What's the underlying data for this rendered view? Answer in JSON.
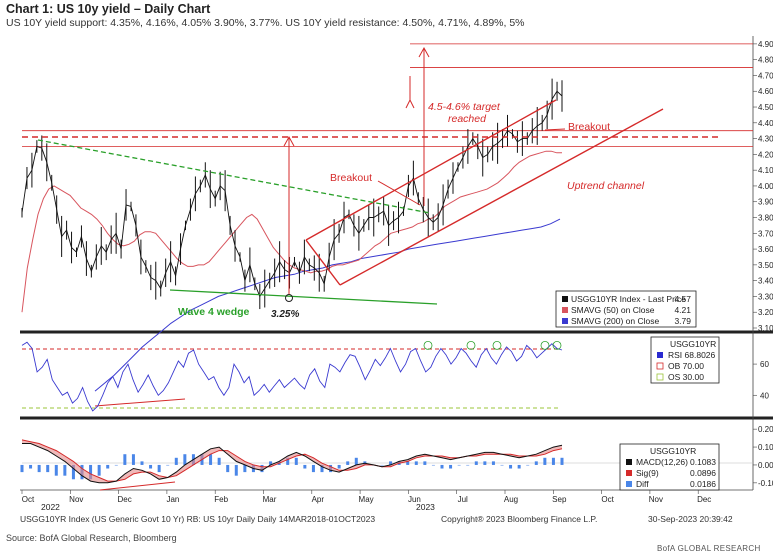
{
  "header": {
    "title": "Chart 1: US 10y yield – Daily Chart",
    "subtitle": "US 10Y yield support: 4.35%, 4.16%, 4.05% 3.90%, 3.77%. US 10Y yield resistance: 4.50%, 4.71%, 4.89%, 5%"
  },
  "colors": {
    "price": "#111111",
    "sma50": "#d8555e",
    "sma200": "#3a3ad0",
    "annotation": "#d52a2a",
    "wedge": "#2aa02a",
    "rsi": "#3a3ad0",
    "macd": "#111111",
    "signal": "#d52a2a",
    "diff": "#4a86e8"
  },
  "chart_data": [
    {
      "panel": "price",
      "type": "line",
      "series": [
        {
          "name": "USGG10YR Index - Last Price",
          "last": "4.57"
        },
        {
          "name": "SMAVG (50) on Close",
          "last": "4.21"
        },
        {
          "name": "SMAVG (200) on Close",
          "last": "3.79"
        }
      ],
      "months": [
        "Oct",
        "Nov",
        "Dec",
        "Jan",
        "Feb",
        "Mar",
        "Apr",
        "May",
        "Jun",
        "Jul",
        "Aug",
        "Sep",
        "Oct",
        "Nov",
        "Dec"
      ],
      "year_labels": [
        "2022",
        "2023"
      ],
      "price": [
        3.83,
        4.05,
        4.1,
        4.25,
        4.24,
        4.15,
        4.02,
        3.85,
        3.68,
        3.72,
        3.61,
        3.58,
        3.68,
        3.54,
        3.46,
        3.55,
        3.62,
        3.58,
        3.66,
        3.7,
        3.6,
        3.88,
        3.87,
        3.75,
        3.55,
        3.49,
        3.42,
        3.4,
        3.35,
        3.45,
        3.52,
        3.43,
        3.6,
        3.75,
        3.85,
        3.95,
        4.0,
        4.07,
        3.98,
        3.92,
        4.0,
        3.97,
        3.75,
        3.62,
        3.55,
        3.4,
        3.5,
        3.38,
        3.3,
        3.35,
        3.4,
        3.45,
        3.52,
        3.47,
        3.45,
        3.52,
        3.45,
        3.55,
        3.5,
        3.48,
        3.45,
        3.38,
        3.55,
        3.66,
        3.7,
        3.8,
        3.82,
        3.75,
        3.7,
        3.75,
        3.8,
        3.8,
        3.82,
        3.84,
        3.75,
        3.78,
        3.8,
        3.84,
        4.0,
        4.05,
        3.92,
        3.85,
        3.8,
        3.77,
        3.8,
        3.88,
        3.98,
        4.05,
        4.12,
        4.18,
        4.25,
        4.3,
        4.25,
        4.18,
        4.2,
        4.25,
        4.27,
        4.3,
        4.35,
        4.33,
        4.28,
        4.3,
        4.3,
        4.35,
        4.38,
        4.4,
        4.45,
        4.55,
        4.6,
        4.57
      ],
      "sma50": [
        3.2,
        3.48,
        3.66,
        3.82,
        3.92,
        3.98,
        4.0,
        3.98,
        3.96,
        3.94,
        3.9,
        3.86,
        3.84,
        3.82,
        3.79,
        3.75,
        3.7,
        3.66,
        3.63,
        3.62,
        3.63,
        3.65,
        3.69,
        3.71,
        3.71,
        3.7,
        3.66,
        3.62,
        3.58,
        3.54,
        3.51,
        3.49,
        3.49,
        3.5,
        3.5,
        3.52,
        3.56,
        3.6,
        3.64,
        3.68,
        3.72,
        3.76,
        3.8,
        3.82,
        3.79,
        3.73,
        3.67,
        3.61,
        3.57,
        3.53,
        3.5,
        3.48,
        3.47,
        3.46,
        3.45,
        3.46,
        3.46,
        3.47,
        3.49,
        3.5,
        3.5,
        3.51,
        3.52,
        3.53,
        3.56,
        3.59,
        3.62,
        3.64,
        3.67,
        3.7,
        3.71,
        3.72,
        3.73,
        3.74,
        3.76,
        3.77,
        3.79,
        3.8,
        3.83,
        3.87,
        3.89,
        3.91,
        3.93,
        3.94,
        3.95,
        3.96,
        3.97,
        3.98,
        4.0,
        4.02,
        4.05,
        4.08,
        4.12,
        4.15,
        4.17,
        4.19,
        4.2,
        4.21,
        4.22,
        4.22,
        4.21,
        4.21
      ],
      "sma200": [
        2.7,
        2.75,
        2.8,
        2.86,
        2.92,
        2.98,
        3.03,
        3.08,
        3.13,
        3.17,
        3.21,
        3.24,
        3.27,
        3.3,
        3.32,
        3.34,
        3.36,
        3.38,
        3.4,
        3.42,
        3.43,
        3.44,
        3.46,
        3.47,
        3.48,
        3.5,
        3.51,
        3.52,
        3.54,
        3.55,
        3.56,
        3.57,
        3.58,
        3.6,
        3.61,
        3.62,
        3.63,
        3.64,
        3.65,
        3.66,
        3.67,
        3.68,
        3.69,
        3.7,
        3.71,
        3.72,
        3.73,
        3.74,
        3.76,
        3.79
      ],
      "ylim": [
        3.1,
        4.95
      ],
      "yticks": [
        "4.90",
        "4.80",
        "4.70",
        "4.60",
        "4.50",
        "4.40",
        "4.30",
        "4.20",
        "4.10",
        "4.00",
        "3.90",
        "3.80",
        "3.70",
        "3.60",
        "3.50",
        "3.40",
        "3.30",
        "3.20",
        "3.10"
      ],
      "horizontal_levels": [
        4.9,
        4.75,
        4.35,
        4.25
      ],
      "annotations": [
        "Breakout",
        "Breakout",
        "Uptrend channel",
        "4.5-4.6% target",
        "reached",
        "Wave 4 wedge",
        "3.25%"
      ],
      "legend": [
        "USGG10YR Index - Last Price 4.57",
        "SMAVG (50) on Close 4.21",
        "SMAVG (200) on Close 3.79"
      ]
    },
    {
      "panel": "rsi",
      "type": "line",
      "title": "USGG10YR",
      "series": [
        {
          "name": "RSI",
          "last": "68.8026"
        }
      ],
      "overbought": "70.00",
      "oversold": "30.00",
      "yticks": [
        "60",
        "40"
      ],
      "ylim": [
        28,
        78
      ],
      "values": [
        72,
        74,
        70,
        55,
        58,
        63,
        50,
        45,
        40,
        42,
        35,
        38,
        45,
        36,
        30,
        33,
        40,
        48,
        52,
        45,
        55,
        60,
        50,
        42,
        47,
        53,
        46,
        40,
        43,
        48,
        55,
        62,
        58,
        67,
        69,
        60,
        55,
        50,
        52,
        45,
        40,
        45,
        60,
        55,
        48,
        52,
        40,
        43,
        47,
        42,
        46,
        50,
        45,
        48,
        51,
        47,
        44,
        53,
        57,
        49,
        45,
        60,
        58,
        55,
        61,
        66,
        65,
        58,
        50,
        56,
        63,
        59,
        64,
        70,
        62,
        55,
        60,
        68,
        70,
        62,
        55,
        58,
        65,
        70,
        66,
        60,
        64,
        70,
        67,
        62,
        58,
        66,
        70,
        64,
        60,
        66,
        71,
        68,
        62,
        65,
        72,
        69,
        64,
        67,
        70,
        73,
        70,
        69
      ]
    },
    {
      "panel": "macd",
      "type": "line",
      "title": "USGG10YR",
      "series": [
        {
          "name": "MACD(12,26)",
          "last": "0.1083"
        },
        {
          "name": "Sig(9)",
          "last": "0.0896"
        },
        {
          "name": "Diff",
          "last": "0.0186"
        }
      ],
      "yticks": [
        "0.20",
        "0.10",
        "0.00",
        "-0.10"
      ],
      "ylim": [
        -0.14,
        0.24
      ],
      "macd": [
        0.12,
        0.12,
        0.1,
        0.08,
        0.05,
        0.02,
        -0.02,
        -0.06,
        -0.09,
        -0.1,
        -0.1,
        -0.09,
        -0.05,
        -0.02,
        -0.03,
        -0.05,
        -0.08,
        -0.07,
        -0.04,
        0.0,
        0.03,
        0.06,
        0.09,
        0.1,
        0.06,
        0.02,
        0.0,
        -0.02,
        -0.03,
        0.0,
        0.02,
        0.05,
        0.07,
        0.05,
        0.02,
        -0.01,
        -0.03,
        -0.04,
        -0.02,
        0.0,
        0.01,
        0.0,
        -0.01,
        0.0,
        0.02,
        0.03,
        0.05,
        0.06,
        0.05,
        0.04,
        0.03,
        0.04,
        0.05,
        0.06,
        0.07,
        0.07,
        0.06,
        0.05,
        0.04,
        0.05,
        0.06,
        0.08,
        0.1,
        0.11
      ],
      "signal": [
        0.14,
        0.13,
        0.12,
        0.1,
        0.08,
        0.05,
        0.02,
        -0.02,
        -0.05,
        -0.07,
        -0.09,
        -0.09,
        -0.08,
        -0.05,
        -0.04,
        -0.04,
        -0.06,
        -0.07,
        -0.06,
        -0.03,
        0.0,
        0.03,
        0.06,
        0.08,
        0.08,
        0.05,
        0.02,
        0.0,
        -0.01,
        -0.01,
        0.01,
        0.03,
        0.05,
        0.06,
        0.04,
        0.01,
        -0.01,
        -0.03,
        -0.03,
        -0.02,
        0.0,
        0.0,
        -0.01,
        -0.01,
        0.01,
        0.02,
        0.04,
        0.05,
        0.05,
        0.05,
        0.04,
        0.04,
        0.05,
        0.05,
        0.06,
        0.06,
        0.06,
        0.06,
        0.05,
        0.05,
        0.05,
        0.06,
        0.08,
        0.09
      ]
    }
  ],
  "footer": {
    "note": "USGG10YR Index (US Generic Govt 10 Yr) RB: US 10yr Daily  Daily 14MAR2018-01OCT2023",
    "copyright": "Copyright® 2023 Bloomberg Finance L.P.",
    "timestamp": "30-Sep-2023 20:39:42",
    "source": "Source: BofA Global Research, Bloomberg",
    "brand": "BofA GLOBAL RESEARCH"
  }
}
